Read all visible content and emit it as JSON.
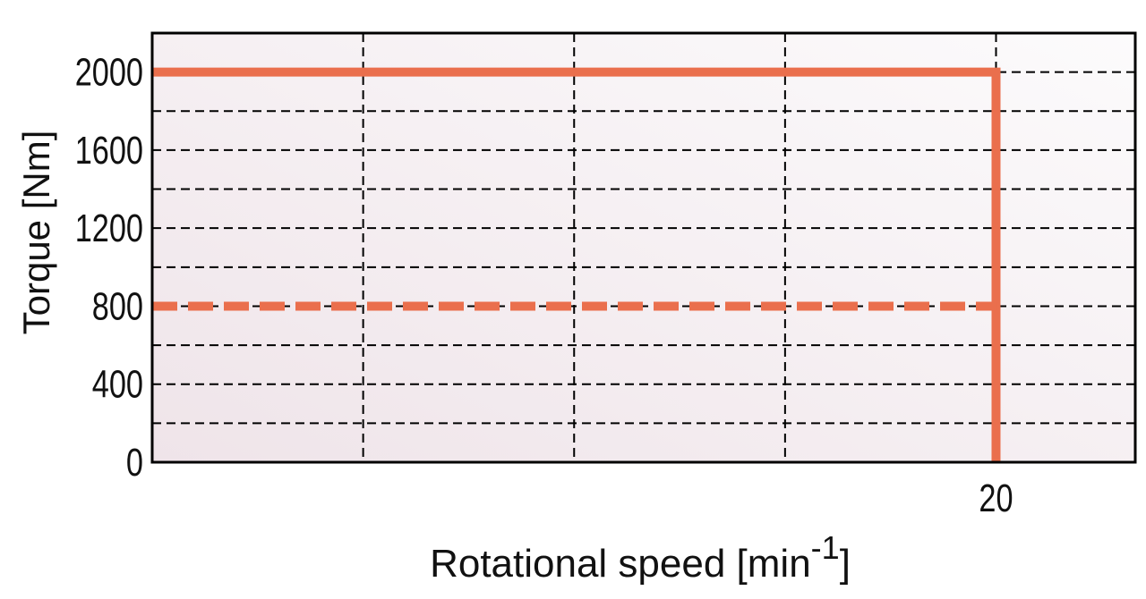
{
  "chart_data": {
    "type": "line",
    "ylabel": "Torque [Nm]",
    "xlabel": {
      "text": "Rotational speed [min",
      "sup": "-1",
      "end": "]"
    },
    "xlim": [
      0,
      23.3
    ],
    "ylim": [
      0,
      2200
    ],
    "xticks": [
      20
    ],
    "x_minor_ticks": [
      5,
      10,
      15
    ],
    "yticks": [
      0,
      400,
      800,
      1200,
      1600,
      2000
    ],
    "y_minor_ticks": [
      200,
      600,
      1000,
      1400,
      1800
    ],
    "grid": true,
    "series": [
      {
        "color": "#ea6f4d",
        "style": "solid",
        "x": [
          0,
          20,
          20
        ],
        "values": [
          2000,
          2000,
          0
        ]
      },
      {
        "color": "#ea6f4d",
        "style": "dash",
        "x": [
          0,
          20
        ],
        "values": [
          800,
          800
        ]
      }
    ]
  }
}
